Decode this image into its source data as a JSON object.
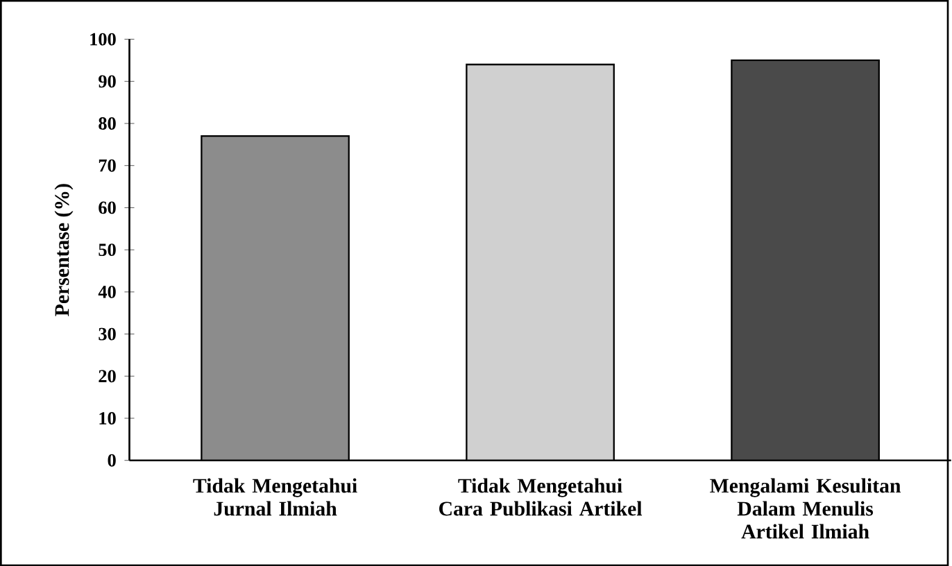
{
  "chart_data": {
    "type": "bar",
    "ylabel": "Persentase (%)",
    "categories": [
      "Tidak Mengetahui Jurnal Ilmiah",
      "Tidak Mengetahui Cara Publikasi Artikel",
      "Mengalami Kesulitan Dalam Menulis Artikel Ilmiah"
    ],
    "values": [
      77,
      94,
      95
    ],
    "colors": [
      "#8c8c8c",
      "#d0d0d0",
      "#4a4a4a"
    ],
    "ylim": [
      0,
      100
    ],
    "yticks": [
      0,
      10,
      20,
      30,
      40,
      50,
      60,
      70,
      80,
      90,
      100
    ],
    "grid": false
  }
}
